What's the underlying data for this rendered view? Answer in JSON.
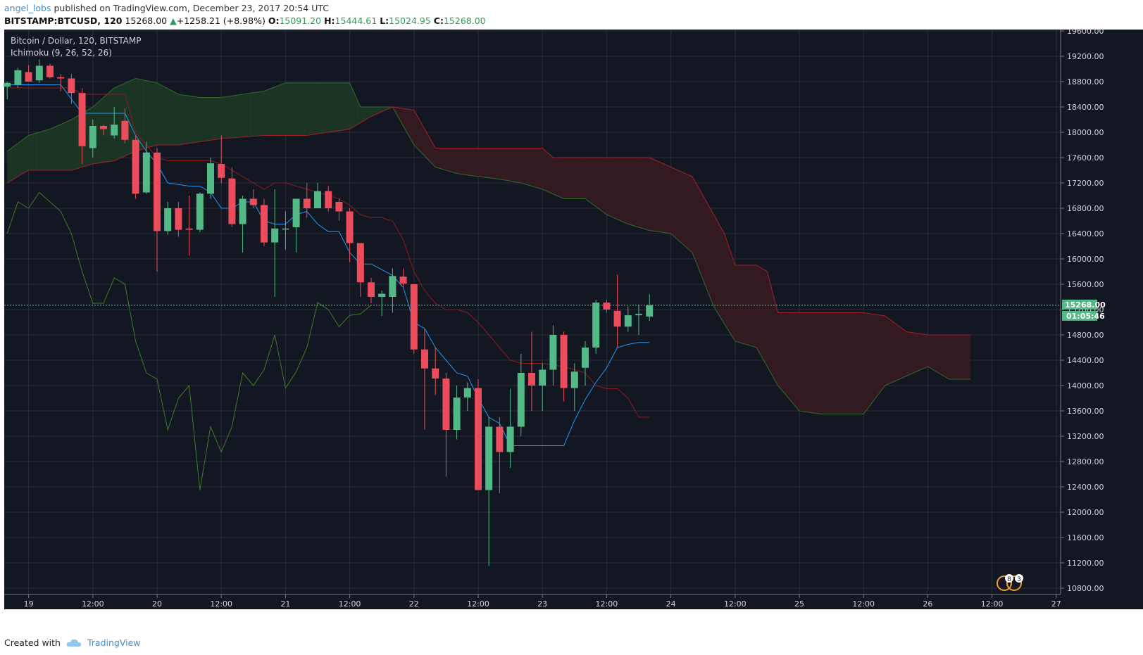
{
  "header": {
    "author": "angel_lobs",
    "published_text": " published on TradingView.com, December 23, 2017 20:54 UTC",
    "symbol": "BITSTAMP:BTCUSD, 120",
    "last": "15268.00",
    "change": "+1258.21 (+8.98%)",
    "o_label": "O:",
    "o_value": "15091.20",
    "h_label": "H:",
    "h_value": "15444.61",
    "l_label": "L:",
    "l_value": "15024.95",
    "c_label": "C:",
    "c_value": "15268.00"
  },
  "footer": {
    "created_with": "Created with",
    "brand": "TradingView"
  },
  "colors": {
    "background": "#131722",
    "grid": "#2a2e39",
    "up": "#53b987",
    "down": "#eb4d5c",
    "tenkan": "#2196f3",
    "kijun": "#8b1a1a",
    "chikou": "#3f7a2e",
    "cloud_bull": "#1e3a24",
    "cloud_bear": "#3a1a20",
    "price_label": "#53b987"
  },
  "chart_data": {
    "type": "candlestick",
    "title": "Bitcoin / Dollar, 120, BITSTAMP",
    "indicator": "Ichimoku (9, 26, 52, 26)",
    "ylim": [
      10600,
      19700
    ],
    "y_ticks": [
      "19600.00",
      "19200.00",
      "18800.00",
      "18400.00",
      "18000.00",
      "17600.00",
      "17200.00",
      "16800.00",
      "16400.00",
      "16000.00",
      "15600.00",
      "15200.00",
      "14800.00",
      "14400.00",
      "14000.00",
      "13600.00",
      "13200.00",
      "12800.00",
      "12400.00",
      "12000.00",
      "11600.00",
      "11200.00",
      "10800.00"
    ],
    "x_ticks": [
      "19",
      "12:00",
      "20",
      "12:00",
      "21",
      "12:00",
      "22",
      "12:00",
      "23",
      "12:00",
      "24",
      "12:00",
      "25",
      "12:00",
      "26",
      "12:00",
      "27"
    ],
    "x_tick_index": [
      2,
      8,
      14,
      20,
      26,
      32,
      38,
      44,
      50,
      56,
      62,
      68,
      74,
      80,
      86,
      92,
      98
    ],
    "last_price_label": "15268.00",
    "countdown_label": "01:05:46",
    "candles": [
      [
        18720,
        18800,
        18520,
        18780
      ],
      [
        18750,
        19020,
        18700,
        18980
      ],
      [
        18950,
        19060,
        18800,
        18800
      ],
      [
        18820,
        19150,
        18780,
        19050
      ],
      [
        19050,
        19080,
        18850,
        18870
      ],
      [
        18870,
        18920,
        18650,
        18850
      ],
      [
        18850,
        18920,
        18450,
        18620
      ],
      [
        18620,
        18700,
        17500,
        17780
      ],
      [
        17750,
        18200,
        17600,
        18100
      ],
      [
        18100,
        18120,
        17950,
        18050
      ],
      [
        17950,
        18400,
        17900,
        18120
      ],
      [
        18180,
        18380,
        17820,
        17880
      ],
      [
        17880,
        17950,
        16950,
        17030
      ],
      [
        17050,
        17850,
        17030,
        17680
      ],
      [
        17680,
        17750,
        15800,
        16440
      ],
      [
        16440,
        16900,
        16380,
        16800
      ],
      [
        16800,
        16900,
        16350,
        16460
      ],
      [
        16480,
        17000,
        16050,
        16460
      ],
      [
        16460,
        17050,
        16420,
        17030
      ],
      [
        17030,
        17600,
        16950,
        17510
      ],
      [
        17500,
        17950,
        17200,
        17280
      ],
      [
        17270,
        17450,
        16500,
        16550
      ],
      [
        16550,
        17000,
        16100,
        16950
      ],
      [
        16950,
        17100,
        16800,
        16850
      ],
      [
        16850,
        16950,
        16200,
        16260
      ],
      [
        16260,
        17100,
        15400,
        16480
      ],
      [
        16480,
        16750,
        16150,
        16480
      ],
      [
        16500,
        16950,
        16100,
        16950
      ],
      [
        16950,
        17200,
        16650,
        16800
      ],
      [
        16800,
        17200,
        16800,
        17070
      ],
      [
        17070,
        17150,
        16750,
        16800
      ],
      [
        16900,
        16950,
        16600,
        16750
      ],
      [
        16750,
        16800,
        15950,
        16250
      ],
      [
        16250,
        16250,
        15400,
        15630
      ],
      [
        15630,
        15700,
        15300,
        15400
      ],
      [
        15400,
        15500,
        15100,
        15450
      ],
      [
        15400,
        15850,
        15150,
        15730
      ],
      [
        15720,
        15850,
        15550,
        15610
      ],
      [
        15600,
        15600,
        14500,
        14570
      ],
      [
        14570,
        14900,
        13300,
        14270
      ],
      [
        14270,
        14600,
        13850,
        14110
      ],
      [
        14110,
        14200,
        12560,
        13300
      ],
      [
        13300,
        14000,
        13150,
        13810
      ],
      [
        13810,
        14050,
        13600,
        13960
      ],
      [
        13960,
        14100,
        12350,
        12350
      ],
      [
        12350,
        13500,
        11150,
        13350
      ],
      [
        13350,
        13500,
        12300,
        12950
      ],
      [
        12950,
        13950,
        12700,
        13350
      ],
      [
        13350,
        14500,
        13200,
        14200
      ],
      [
        14200,
        14850,
        13600,
        14000
      ],
      [
        14000,
        14350,
        13600,
        14250
      ],
      [
        14250,
        14950,
        14000,
        14800
      ],
      [
        14800,
        14850,
        13750,
        13960
      ],
      [
        13960,
        14350,
        13600,
        14220
      ],
      [
        14280,
        14700,
        14000,
        14600
      ],
      [
        14600,
        15350,
        14500,
        15310
      ],
      [
        15310,
        15350,
        15150,
        15200
      ],
      [
        15180,
        15750,
        14600,
        14930
      ],
      [
        14930,
        15250,
        14850,
        15110
      ],
      [
        15110,
        15280,
        14800,
        15130
      ],
      [
        15090,
        15440,
        15020,
        15270
      ]
    ],
    "tenkan": [
      [
        0,
        18750
      ],
      [
        5,
        18750
      ],
      [
        7,
        18300
      ],
      [
        9,
        18300
      ],
      [
        11,
        18300
      ],
      [
        12,
        17950
      ],
      [
        13,
        17700
      ],
      [
        14,
        17500
      ],
      [
        15,
        17200
      ],
      [
        17,
        17150
      ],
      [
        18,
        17150
      ],
      [
        19,
        17050
      ],
      [
        20,
        16800
      ],
      [
        21,
        16800
      ],
      [
        22,
        16900
      ],
      [
        23,
        16900
      ],
      [
        24,
        16600
      ],
      [
        25,
        16550
      ],
      [
        26,
        16550
      ],
      [
        27,
        16700
      ],
      [
        28,
        16750
      ],
      [
        29,
        16550
      ],
      [
        30,
        16430
      ],
      [
        31,
        16430
      ],
      [
        32,
        16100
      ],
      [
        33,
        15920
      ],
      [
        34,
        15920
      ],
      [
        36,
        15740
      ],
      [
        37,
        15550
      ],
      [
        38,
        15000
      ],
      [
        39,
        14900
      ],
      [
        40,
        14600
      ],
      [
        41,
        14400
      ],
      [
        42,
        14200
      ],
      [
        43,
        14150
      ],
      [
        44,
        13800
      ],
      [
        45,
        13500
      ],
      [
        46,
        13400
      ],
      [
        47,
        13050
      ],
      [
        48,
        13050
      ],
      [
        50,
        13050
      ],
      [
        52,
        13050
      ],
      [
        53,
        13450
      ],
      [
        54,
        13780
      ],
      [
        55,
        14050
      ],
      [
        56,
        14280
      ],
      [
        57,
        14600
      ],
      [
        58,
        14650
      ],
      [
        59,
        14680
      ],
      [
        60,
        14680
      ]
    ],
    "kijun": [
      [
        0,
        18700
      ],
      [
        6,
        18700
      ],
      [
        7,
        18600
      ],
      [
        9,
        18600
      ],
      [
        11,
        18600
      ],
      [
        12,
        18000
      ],
      [
        13,
        17800
      ],
      [
        14,
        17600
      ],
      [
        15,
        17550
      ],
      [
        17,
        17550
      ],
      [
        19,
        17550
      ],
      [
        20,
        17500
      ],
      [
        21,
        17400
      ],
      [
        22,
        17300
      ],
      [
        23,
        17200
      ],
      [
        24,
        17100
      ],
      [
        25,
        17200
      ],
      [
        26,
        17200
      ],
      [
        27,
        17150
      ],
      [
        28,
        17100
      ],
      [
        29,
        17050
      ],
      [
        30,
        17000
      ],
      [
        31,
        16950
      ],
      [
        32,
        16850
      ],
      [
        33,
        16700
      ],
      [
        34,
        16650
      ],
      [
        35,
        16650
      ],
      [
        36,
        16600
      ],
      [
        37,
        16300
      ],
      [
        38,
        15800
      ],
      [
        39,
        15500
      ],
      [
        40,
        15300
      ],
      [
        41,
        15200
      ],
      [
        42,
        15200
      ],
      [
        43,
        15150
      ],
      [
        44,
        15000
      ],
      [
        45,
        14800
      ],
      [
        46,
        14600
      ],
      [
        47,
        14400
      ],
      [
        48,
        14350
      ],
      [
        50,
        14350
      ],
      [
        52,
        14300
      ],
      [
        53,
        14250
      ],
      [
        54,
        14200
      ],
      [
        55,
        14000
      ],
      [
        56,
        13950
      ],
      [
        57,
        13950
      ],
      [
        58,
        13800
      ],
      [
        59,
        13500
      ],
      [
        60,
        13500
      ]
    ],
    "chikou": [
      [
        0,
        16400
      ],
      [
        1,
        16900
      ],
      [
        2,
        16800
      ],
      [
        3,
        17050
      ],
      [
        4,
        16900
      ],
      [
        5,
        16750
      ],
      [
        6,
        16400
      ],
      [
        7,
        15800
      ],
      [
        8,
        15300
      ],
      [
        9,
        15300
      ],
      [
        10,
        15700
      ],
      [
        11,
        15600
      ],
      [
        12,
        14700
      ],
      [
        13,
        14200
      ],
      [
        14,
        14100
      ],
      [
        15,
        13300
      ],
      [
        16,
        13800
      ],
      [
        17,
        14000
      ],
      [
        18,
        12350
      ],
      [
        19,
        13350
      ],
      [
        20,
        12950
      ],
      [
        21,
        13350
      ],
      [
        22,
        14200
      ],
      [
        23,
        14000
      ],
      [
        24,
        14250
      ],
      [
        25,
        14800
      ],
      [
        26,
        13960
      ],
      [
        27,
        14220
      ],
      [
        28,
        14600
      ],
      [
        29,
        15310
      ],
      [
        30,
        15200
      ],
      [
        31,
        14930
      ],
      [
        32,
        15110
      ],
      [
        33,
        15130
      ],
      [
        34,
        15270
      ]
    ],
    "senkou_a": [
      [
        0,
        17700
      ],
      [
        2,
        17950
      ],
      [
        4,
        18050
      ],
      [
        6,
        18200
      ],
      [
        8,
        18400
      ],
      [
        10,
        18700
      ],
      [
        12,
        18850
      ],
      [
        14,
        18780
      ],
      [
        16,
        18600
      ],
      [
        18,
        18550
      ],
      [
        20,
        18550
      ],
      [
        22,
        18600
      ],
      [
        24,
        18650
      ],
      [
        26,
        18780
      ],
      [
        28,
        18780
      ],
      [
        32,
        18780
      ],
      [
        33,
        18400
      ],
      [
        34,
        18400
      ],
      [
        36,
        18400
      ],
      [
        38,
        17800
      ],
      [
        40,
        17450
      ],
      [
        42,
        17350
      ],
      [
        44,
        17300
      ],
      [
        46,
        17260
      ],
      [
        48,
        17200
      ],
      [
        50,
        17100
      ],
      [
        52,
        16950
      ],
      [
        54,
        16950
      ],
      [
        56,
        16700
      ],
      [
        58,
        16550
      ],
      [
        60,
        16450
      ],
      [
        62,
        16400
      ],
      [
        64,
        16100
      ],
      [
        66,
        15250
      ],
      [
        68,
        14700
      ],
      [
        70,
        14600
      ],
      [
        72,
        14000
      ],
      [
        74,
        13600
      ],
      [
        76,
        13550
      ],
      [
        80,
        13550
      ],
      [
        82,
        14000
      ],
      [
        84,
        14150
      ],
      [
        86,
        14300
      ],
      [
        88,
        14100
      ],
      [
        90,
        14100
      ]
    ],
    "senkou_b": [
      [
        0,
        17200
      ],
      [
        2,
        17400
      ],
      [
        6,
        17400
      ],
      [
        8,
        17500
      ],
      [
        10,
        17550
      ],
      [
        12,
        17700
      ],
      [
        14,
        17800
      ],
      [
        16,
        17800
      ],
      [
        18,
        17850
      ],
      [
        20,
        17900
      ],
      [
        24,
        17950
      ],
      [
        28,
        17950
      ],
      [
        32,
        18050
      ],
      [
        34,
        18250
      ],
      [
        36,
        18400
      ],
      [
        38,
        18350
      ],
      [
        40,
        17750
      ],
      [
        44,
        17750
      ],
      [
        50,
        17750
      ],
      [
        51,
        17600
      ],
      [
        56,
        17600
      ],
      [
        60,
        17600
      ],
      [
        62,
        17450
      ],
      [
        64,
        17300
      ],
      [
        66,
        16700
      ],
      [
        67,
        16400
      ],
      [
        68,
        15900
      ],
      [
        70,
        15900
      ],
      [
        71,
        15800
      ],
      [
        72,
        15150
      ],
      [
        76,
        15150
      ],
      [
        80,
        15150
      ],
      [
        82,
        15100
      ],
      [
        84,
        14850
      ],
      [
        86,
        14800
      ],
      [
        88,
        14800
      ],
      [
        90,
        14800
      ]
    ]
  },
  "attribution_badges": [
    "8",
    "3"
  ]
}
